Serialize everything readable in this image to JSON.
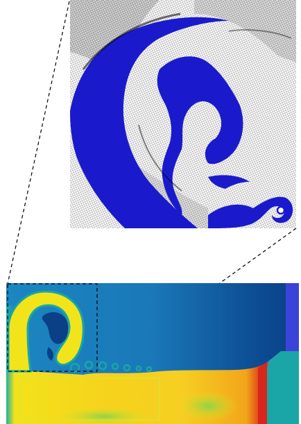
{
  "figure": {
    "description_visible_text": "",
    "colors": {
      "mesh_ink": "#1a1a1a",
      "mesh_background": "#ffffff",
      "fluid_blue": "#1a1acc",
      "field_deep_blue": "#0b3f86",
      "field_mid_blue": "#1673b8",
      "field_teal": "#1aa6a6",
      "field_green": "#7fd14a",
      "field_yellow": "#f2e41a",
      "field_orange": "#f29a18",
      "field_red": "#d8261b",
      "shock_blue": "#3c43d8",
      "guide_dash": "#000000"
    }
  }
}
